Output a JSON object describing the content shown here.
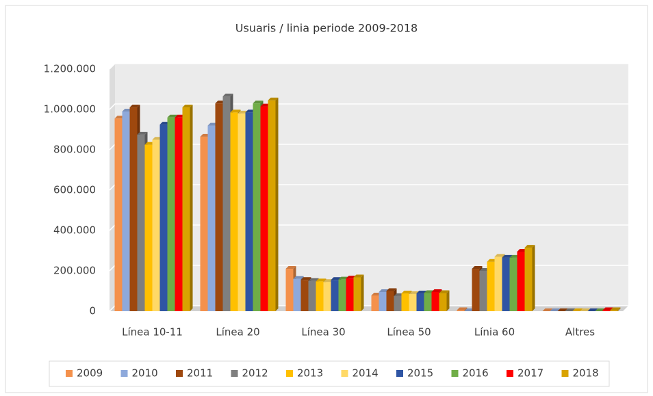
{
  "chart_data": {
    "type": "bar3d",
    "title": "Usuaris / linia periode 2009-2018",
    "categories": [
      "Línea 10-11",
      "Línea 20",
      "Línea 30",
      "Línea 50",
      "Línia 60",
      "Altres"
    ],
    "series": [
      {
        "name": "2009",
        "color": "#f4914c",
        "values": [
          955000,
          865000,
          210000,
          78000,
          5000,
          0
        ]
      },
      {
        "name": "2010",
        "color": "#8ea9db",
        "values": [
          990000,
          920000,
          160000,
          95000,
          0,
          0
        ]
      },
      {
        "name": "2011",
        "color": "#9e480e",
        "values": [
          1010000,
          1030000,
          155000,
          100000,
          210000,
          0
        ]
      },
      {
        "name": "2012",
        "color": "#7f7f7f",
        "values": [
          875000,
          1065000,
          150000,
          75000,
          200000,
          0
        ]
      },
      {
        "name": "2013",
        "color": "#ffc000",
        "values": [
          825000,
          985000,
          148000,
          88000,
          245000,
          0
        ]
      },
      {
        "name": "2014",
        "color": "#ffd966",
        "values": [
          850000,
          980000,
          145000,
          85000,
          270000,
          0
        ]
      },
      {
        "name": "2015",
        "color": "#2f55a4",
        "values": [
          925000,
          985000,
          155000,
          88000,
          265000,
          0
        ]
      },
      {
        "name": "2016",
        "color": "#70ad47",
        "values": [
          960000,
          1030000,
          157000,
          90000,
          265000,
          0
        ]
      },
      {
        "name": "2017",
        "color": "#ff0000",
        "values": [
          960000,
          1015000,
          162000,
          95000,
          295000,
          5000
        ]
      },
      {
        "name": "2018",
        "color": "#d9a300",
        "values": [
          1010000,
          1045000,
          168000,
          90000,
          315000,
          5000
        ]
      }
    ],
    "ylim": [
      0,
      1200000
    ],
    "yticks": [
      0,
      {
        "value": 200000,
        "label": "200.000"
      },
      {
        "value": 400000,
        "label": "400.000"
      },
      {
        "value": 600000,
        "label": "600.000"
      },
      {
        "value": 800000,
        "label": "800.000"
      },
      {
        "value": 1000000,
        "label": "1.000.000"
      },
      {
        "value": 1200000,
        "label": "1.200.000"
      }
    ],
    "grid": true,
    "legend": "bottom"
  }
}
